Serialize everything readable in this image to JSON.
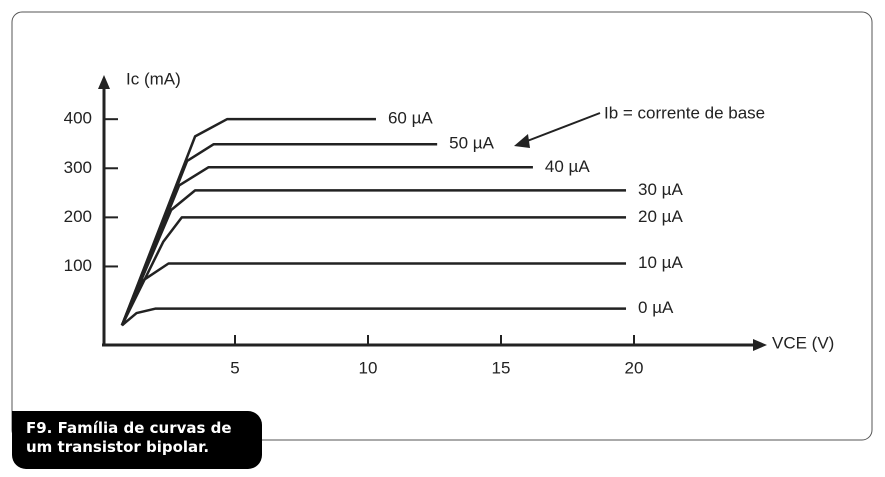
{
  "chart_data": {
    "type": "line",
    "y_label": "Ic (mA)",
    "x_label": "VCE (V)",
    "annotation": "Ib = corrente de base",
    "caption": [
      "F9. Família de curvas de",
      "um transistor bipolar."
    ],
    "xlim": [
      0,
      25
    ],
    "ylim": [
      -60,
      490
    ],
    "xticks": [
      5,
      10,
      15,
      20
    ],
    "yticks": [
      100,
      200,
      300,
      400
    ],
    "color": "#222",
    "series": [
      {
        "name": "60 µA",
        "x": [
          0.75,
          3.5,
          4.7,
          10.3
        ],
        "values": [
          -20,
          365,
          400,
          400
        ]
      },
      {
        "name": "50 µA",
        "x": [
          0.75,
          3.2,
          4.2,
          12.6
        ],
        "values": [
          -20,
          315,
          349,
          349
        ]
      },
      {
        "name": "40 µA",
        "x": [
          0.75,
          2.9,
          4,
          16.2
        ],
        "values": [
          -20,
          265,
          302,
          302
        ]
      },
      {
        "name": "30 µA",
        "x": [
          0.75,
          2.6,
          3.5,
          19.7
        ],
        "values": [
          -20,
          215,
          255,
          255
        ]
      },
      {
        "name": "20 µA",
        "x": [
          0.75,
          2.3,
          3,
          19.7
        ],
        "values": [
          -20,
          150,
          200,
          200
        ]
      },
      {
        "name": "10 µA",
        "x": [
          0.75,
          1.5,
          2.5,
          19.7
        ],
        "values": [
          -20,
          70,
          106,
          106
        ]
      },
      {
        "name": "0 µA",
        "x": [
          0.75,
          1.3,
          2,
          19.7
        ],
        "values": [
          -20,
          5,
          14,
          14
        ]
      }
    ]
  }
}
